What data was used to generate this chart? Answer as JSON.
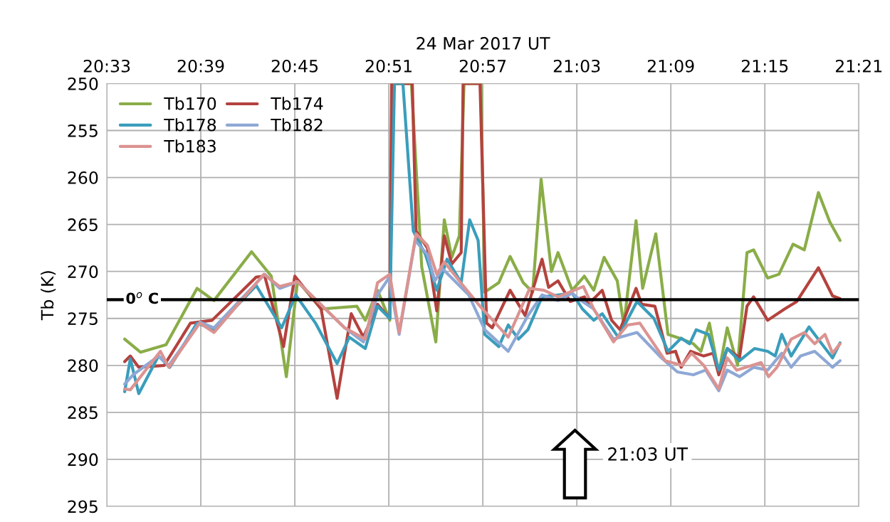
{
  "chart_data": {
    "type": "line",
    "xlabel": "24 Mar 2017 UT",
    "ylabel": "Tb (K)",
    "xlim": [
      20.55,
      21.35
    ],
    "xticks": [
      {
        "value": 20.55,
        "label": "20:33"
      },
      {
        "value": 20.65,
        "label": "20:39"
      },
      {
        "value": 20.75,
        "label": "20:45"
      },
      {
        "value": 20.85,
        "label": "20:51"
      },
      {
        "value": 20.95,
        "label": "20:57"
      },
      {
        "value": 21.05,
        "label": "21:03"
      },
      {
        "value": 21.15,
        "label": "21:09"
      },
      {
        "value": 21.25,
        "label": "21:15"
      },
      {
        "value": 21.35,
        "label": "21:21"
      }
    ],
    "ylim": [
      295,
      250
    ],
    "yticks": [
      250,
      255,
      260,
      265,
      270,
      275,
      280,
      285,
      290,
      295
    ],
    "grid": true,
    "legend": "top left",
    "marker": "none",
    "line_style": "solid",
    "series": [
      {
        "name": "Tb170",
        "color": "#8aad48",
        "x": [
          20.569,
          20.586,
          20.613,
          20.646,
          20.664,
          20.704,
          20.725,
          20.741,
          20.753,
          20.778,
          20.816,
          20.825,
          20.838,
          20.851,
          20.854,
          20.874,
          20.885,
          20.9,
          20.909,
          20.917,
          20.925,
          20.93,
          20.948,
          20.952,
          20.967,
          20.979,
          20.993,
          21.003,
          21.012,
          21.023,
          21.03,
          21.045,
          21.058,
          21.068,
          21.079,
          21.093,
          21.1,
          21.113,
          21.12,
          21.134,
          21.147,
          21.162,
          21.174,
          21.182,
          21.191,
          21.201,
          21.21,
          21.221,
          21.231,
          21.238,
          21.253,
          21.265,
          21.28,
          21.292,
          21.307,
          21.319,
          21.33
        ],
        "values": [
          277.2,
          278.6,
          277.8,
          271.8,
          273.1,
          267.9,
          270.5,
          281.2,
          271.0,
          274.0,
          273.7,
          275.2,
          272.0,
          275.2,
          250,
          250,
          269.5,
          277.5,
          264.5,
          268.5,
          266.2,
          250,
          250,
          272.2,
          271.2,
          268.4,
          271.2,
          272.2,
          260.2,
          270.0,
          268.0,
          272.0,
          270.5,
          272.0,
          268.5,
          271.0,
          275.7,
          264.6,
          271.8,
          266.0,
          276.7,
          277.2,
          277.7,
          278.5,
          275.5,
          280.8,
          276.0,
          280.0,
          268.0,
          267.7,
          270.7,
          270.3,
          267.1,
          267.7,
          261.6,
          264.7,
          266.7
        ]
      },
      {
        "name": "Tb174",
        "color": "#b4423e",
        "x": [
          20.569,
          20.575,
          20.584,
          20.611,
          20.639,
          20.662,
          20.709,
          20.718,
          20.738,
          20.75,
          20.778,
          20.795,
          20.81,
          20.823,
          20.838,
          20.851,
          20.853,
          20.875,
          20.879,
          20.891,
          20.901,
          20.909,
          20.917,
          20.927,
          20.929,
          20.947,
          20.954,
          20.96,
          20.979,
          20.995,
          21.013,
          21.02,
          21.03,
          21.043,
          21.058,
          21.062,
          21.077,
          21.087,
          21.096,
          21.113,
          21.119,
          21.133,
          21.146,
          21.155,
          21.161,
          21.171,
          21.185,
          21.195,
          21.201,
          21.21,
          21.223,
          21.231,
          21.238,
          21.253,
          21.271,
          21.284,
          21.307,
          21.322,
          21.33
        ],
        "values": [
          279.6,
          279.0,
          280.2,
          280.0,
          275.5,
          275.2,
          270.6,
          270.5,
          278.0,
          270.5,
          274.0,
          283.5,
          274.5,
          277.0,
          273.5,
          275.0,
          250,
          250,
          265.7,
          267.5,
          274.2,
          266.2,
          269.2,
          268.0,
          250,
          250,
          275.5,
          276.0,
          272.0,
          274.7,
          268.7,
          271.7,
          271.0,
          273.2,
          272.7,
          273.5,
          272.0,
          275.2,
          276.2,
          271.8,
          273.5,
          273.7,
          278.7,
          278.5,
          280.2,
          278.5,
          279.0,
          278.7,
          281.0,
          278.2,
          279.2,
          273.7,
          272.7,
          275.2,
          274.0,
          273.2,
          269.6,
          272.6,
          272.9
        ]
      },
      {
        "name": "Tb178",
        "color": "#3a9dbb",
        "x": [
          20.569,
          20.575,
          20.584,
          20.605,
          20.617,
          20.646,
          20.664,
          20.709,
          20.736,
          20.751,
          20.772,
          20.795,
          20.808,
          20.825,
          20.838,
          20.851,
          20.856,
          20.865,
          20.876,
          20.889,
          20.901,
          20.912,
          20.927,
          20.936,
          20.945,
          20.952,
          20.967,
          20.977,
          20.988,
          20.998,
          21.013,
          21.03,
          21.045,
          21.056,
          21.068,
          21.077,
          21.094,
          21.114,
          21.132,
          21.147,
          21.161,
          21.17,
          21.177,
          21.19,
          21.201,
          21.21,
          21.223,
          21.239,
          21.253,
          21.261,
          21.268,
          21.278,
          21.297,
          21.309,
          21.322,
          21.33
        ],
        "values": [
          282.8,
          279.3,
          283.0,
          279.0,
          280.2,
          275.5,
          276.2,
          271.5,
          276.0,
          272.5,
          275.5,
          279.8,
          277.0,
          278.2,
          273.7,
          275.0,
          250,
          250,
          265.7,
          268.2,
          272.0,
          268.7,
          271.2,
          264.5,
          266.7,
          276.7,
          278.0,
          275.7,
          277.2,
          276.2,
          272.7,
          272.5,
          272.3,
          274.0,
          275.2,
          274.5,
          277.0,
          273.2,
          275.0,
          278.5,
          277.1,
          277.7,
          276.2,
          276.7,
          280.5,
          278.2,
          279.5,
          278.2,
          278.5,
          279.0,
          276.7,
          279.0,
          275.9,
          277.5,
          279.2,
          277.6
        ]
      },
      {
        "name": "Tb182",
        "color": "#8ea8d5",
        "x": [
          20.569,
          20.578,
          20.605,
          20.616,
          20.649,
          20.664,
          20.718,
          20.734,
          20.753,
          20.803,
          20.823,
          20.838,
          20.85,
          20.861,
          20.878,
          20.891,
          20.899,
          20.907,
          20.935,
          20.952,
          20.977,
          20.998,
          21.013,
          21.03,
          21.045,
          21.053,
          21.068,
          21.089,
          21.114,
          21.14,
          21.157,
          21.174,
          21.187,
          21.201,
          21.21,
          21.223,
          21.238,
          21.253,
          21.268,
          21.278,
          21.288,
          21.303,
          21.322,
          21.33
        ],
        "values": [
          282.0,
          281.0,
          279.0,
          280.0,
          275.4,
          276.0,
          270.3,
          271.8,
          271.1,
          276.0,
          277.5,
          272.5,
          270.7,
          276.7,
          266.7,
          268.2,
          271.0,
          269.7,
          272.5,
          276.2,
          278.5,
          274.7,
          272.5,
          273.1,
          272.3,
          273.0,
          274.0,
          277.2,
          276.5,
          279.2,
          280.7,
          281.0,
          280.5,
          282.7,
          280.5,
          281.2,
          280.2,
          280.5,
          278.7,
          280.2,
          279.0,
          278.5,
          280.2,
          279.5
        ]
      },
      {
        "name": "Tb183",
        "color": "#db9391",
        "x": [
          20.569,
          20.575,
          20.607,
          20.616,
          20.649,
          20.664,
          20.717,
          20.734,
          20.753,
          20.803,
          20.825,
          20.838,
          20.851,
          20.861,
          20.879,
          20.891,
          20.901,
          20.909,
          20.929,
          20.947,
          20.977,
          21.0,
          21.015,
          21.03,
          21.057,
          21.068,
          21.089,
          21.104,
          21.117,
          21.144,
          21.162,
          21.172,
          21.185,
          21.201,
          21.21,
          21.22,
          21.246,
          21.254,
          21.263,
          21.278,
          21.292,
          21.303,
          21.314,
          21.322,
          21.33
        ],
        "values": [
          282.5,
          282.6,
          278.5,
          280.2,
          275.5,
          276.5,
          270.3,
          271.6,
          271.1,
          276.0,
          277.2,
          271.2,
          270.3,
          276.5,
          266.0,
          267.2,
          270.3,
          269.0,
          271.5,
          273.7,
          277.0,
          271.8,
          272.0,
          272.7,
          271.6,
          274.0,
          277.5,
          275.7,
          275.5,
          279.5,
          280.0,
          278.7,
          280.0,
          282.5,
          279.2,
          280.5,
          279.7,
          281.2,
          280.2,
          277.2,
          276.5,
          277.7,
          276.7,
          278.7,
          277.7
        ]
      }
    ],
    "ref_lines": [
      {
        "axis": "y",
        "value": 273,
        "label": "0$^{o}$ C",
        "color": "#000000",
        "line_style": "solid"
      }
    ],
    "annotations": [
      "21:03 UT"
    ]
  }
}
